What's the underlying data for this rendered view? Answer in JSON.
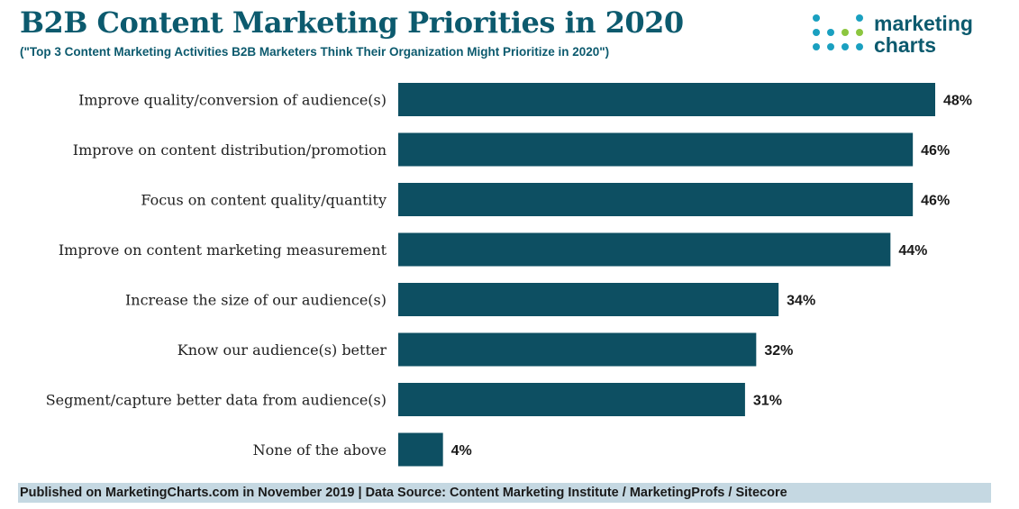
{
  "header": {
    "title": "B2B Content Marketing Priorities in 2020",
    "subtitle": "(\"Top 3 Content Marketing Activities B2B Marketers Think Their Organization Might Prioritize in 2020\")"
  },
  "logo": {
    "line1": "marketing",
    "line2": "charts",
    "dot_colors": [
      "#1aa0c0",
      "#8cc63f"
    ]
  },
  "chart_data": {
    "type": "bar",
    "orientation": "horizontal",
    "categories": [
      "Improve quality/conversion of audience(s)",
      "Improve on content distribution/promotion",
      "Focus on content quality/quantity",
      "Improve on content marketing measurement",
      "Increase the size of our audience(s)",
      "Know our audience(s) better",
      "Segment/capture better data from audience(s)",
      "None of the above"
    ],
    "values": [
      48,
      46,
      46,
      44,
      34,
      32,
      31,
      4
    ],
    "value_labels": [
      "48%",
      "46%",
      "46%",
      "44%",
      "34%",
      "32%",
      "31%",
      "4%"
    ],
    "xlim": [
      0,
      48
    ],
    "bar_color": "#0d4f62",
    "grid": false,
    "legend": "none"
  },
  "footer": {
    "text": "Published on MarketingCharts.com in November 2019 | Data Source: Content Marketing Institute / MarketingProfs / Sitecore"
  }
}
